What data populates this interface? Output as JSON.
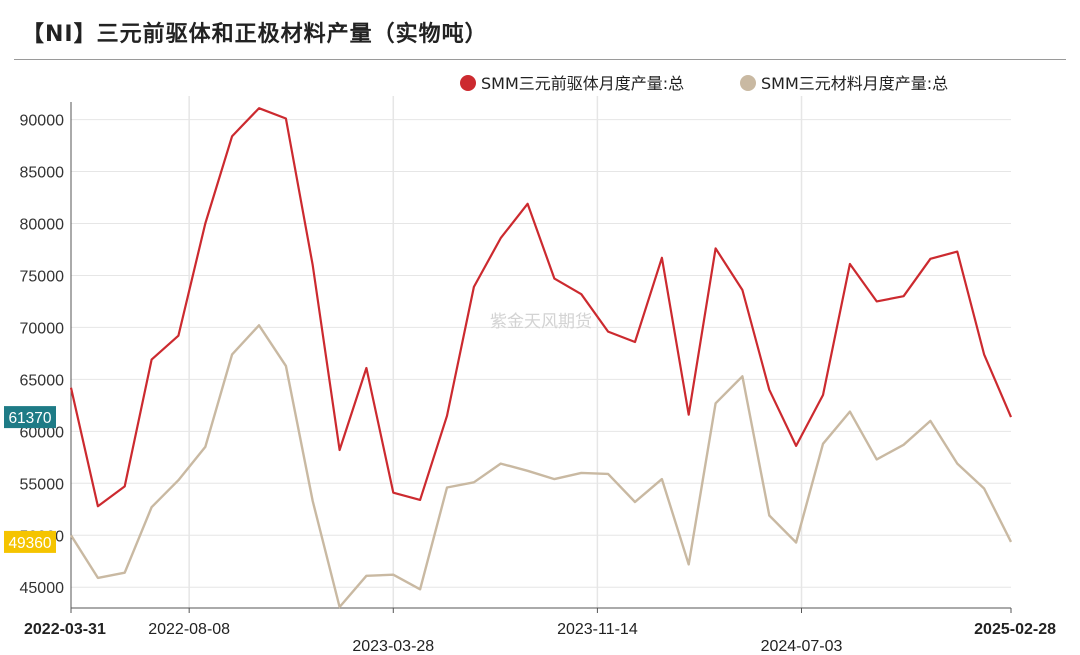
{
  "header": {
    "title": "【NI】三元前驱体和正极材料产量（实物吨）"
  },
  "watermark": "紫金天风期货",
  "colors": {
    "precursor": "#cc2a2f",
    "cathode": "#c9b9a2",
    "grid": "#e6e6e6",
    "axis": "#555555",
    "badge_precursor": "#1e7b86",
    "badge_cathode": "#f5c400"
  },
  "chart_data": {
    "type": "line",
    "title": "【NI】三元前驱体和正极材料产量（实物吨）",
    "xlabel": "",
    "ylabel": "",
    "ylim": [
      43000,
      91500
    ],
    "yticks": [
      45000,
      50000,
      55000,
      60000,
      65000,
      70000,
      75000,
      80000,
      85000,
      90000
    ],
    "x_tick_labels": [
      {
        "label": "2022-03-31",
        "index": 0,
        "row": 1,
        "bold": true
      },
      {
        "label": "2022-08-08",
        "index": 4.4,
        "row": 1,
        "bold": false
      },
      {
        "label": "2023-03-28",
        "index": 12,
        "row": 2,
        "bold": false
      },
      {
        "label": "2023-11-14",
        "index": 19.6,
        "row": 1,
        "bold": false
      },
      {
        "label": "2024-07-03",
        "index": 27.2,
        "row": 2,
        "bold": false
      },
      {
        "label": "2025-02-28",
        "index": 35,
        "row": 1,
        "bold": true
      }
    ],
    "vgrid_indices": [
      4.4,
      12,
      19.6,
      27.2
    ],
    "legend_position": "top-right",
    "series": [
      {
        "name": "SMM三元前驱体月度产量:总",
        "color": "#cc2a2f",
        "values": [
          64200,
          52800,
          54700,
          66900,
          69200,
          80000,
          88400,
          91100,
          90100,
          76000,
          58200,
          66100,
          54100,
          53400,
          61500,
          73900,
          78600,
          81900,
          74700,
          73200,
          69600,
          68600,
          76700,
          61600,
          77600,
          73600,
          64000,
          58600,
          63500,
          76100,
          72500,
          73000,
          76600,
          77300,
          67400,
          61370
        ]
      },
      {
        "name": "SMM三元材料月度产量:总",
        "color": "#c9b9a2",
        "values": [
          50000,
          45900,
          46400,
          52700,
          55300,
          58500,
          67400,
          70200,
          66300,
          53300,
          43100,
          46100,
          46200,
          44800,
          54600,
          55100,
          56900,
          56200,
          55400,
          56000,
          55900,
          53200,
          55400,
          47200,
          62700,
          65300,
          51900,
          49300,
          58800,
          61900,
          57300,
          58700,
          61000,
          56900,
          54500,
          49360
        ]
      }
    ],
    "last_values": [
      {
        "value": 61370,
        "label": "61370"
      },
      {
        "value": 49360,
        "label": "49360"
      }
    ]
  }
}
